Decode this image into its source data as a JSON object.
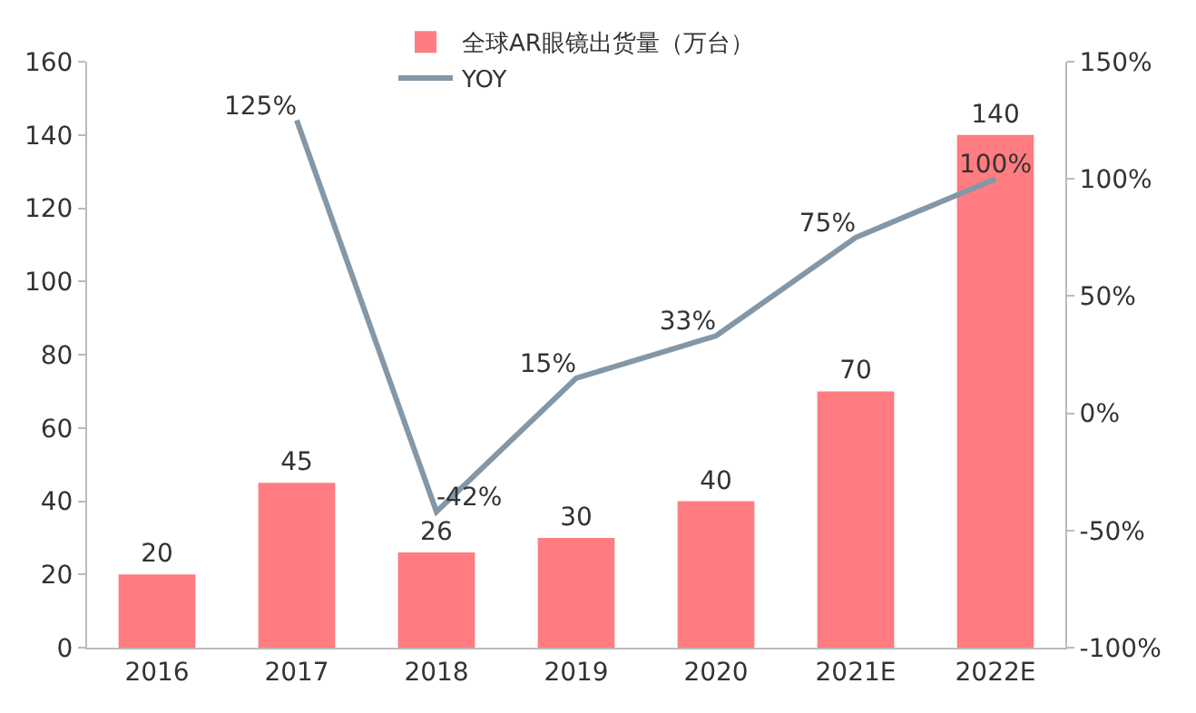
{
  "chart_data": {
    "type": "bar",
    "categories": [
      "2016",
      "2017",
      "2018",
      "2019",
      "2020",
      "2021E",
      "2022E"
    ],
    "series": [
      {
        "name": "全球AR眼镜出货量（万台）",
        "color": "#ff7c80",
        "values": [
          20,
          45,
          26,
          30,
          40,
          70,
          140
        ],
        "value_labels": [
          "20",
          "45",
          "26",
          "30",
          "40",
          "70",
          "140"
        ]
      },
      {
        "name": "YOY",
        "type": "line",
        "axis": "y2",
        "color": "#8497a6",
        "values": [
          null,
          125,
          -42,
          15,
          33,
          75,
          100
        ],
        "value_labels": [
          null,
          "125%",
          "-42%",
          "15%",
          "33%",
          "75%",
          "100%"
        ]
      }
    ],
    "ylim": [
      0,
      160
    ],
    "yticks": [
      0,
      20,
      40,
      60,
      80,
      100,
      120,
      140,
      160
    ],
    "y2lim": [
      -100,
      150
    ],
    "y2ticks": [
      {
        "value": -100,
        "label": "-100%"
      },
      {
        "value": -50,
        "label": "-50%"
      },
      {
        "value": 0,
        "label": "0%"
      },
      {
        "value": 50,
        "label": "50%"
      },
      {
        "value": 100,
        "label": "100%"
      },
      {
        "value": 150,
        "label": "150%"
      }
    ],
    "grid": false,
    "legend": "top",
    "marker": "none",
    "line_style": "solid"
  }
}
